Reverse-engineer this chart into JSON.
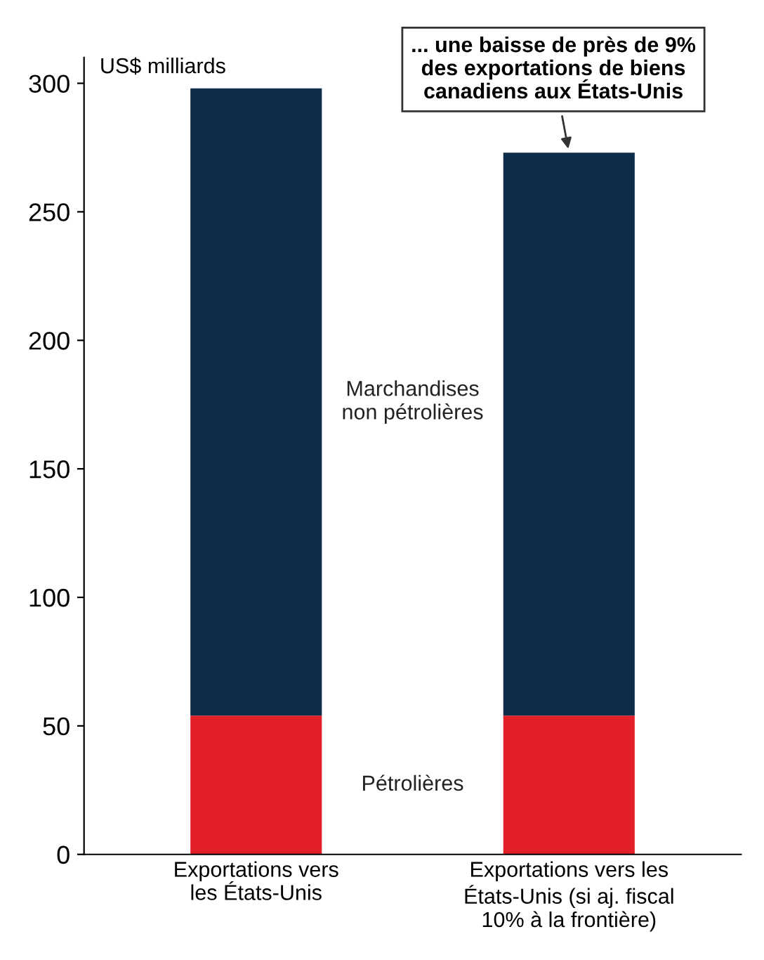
{
  "chart_data": {
    "type": "bar",
    "stacked": true,
    "ylabel": "US$ milliards",
    "categories": [
      "Exportations vers\nles États-Unis",
      "Exportations vers les\nÉtats-Unis (si aj. fiscal\n10% à la frontière)"
    ],
    "series": [
      {
        "name": "Pétrolières",
        "color": "#e3202a",
        "values": [
          54,
          54
        ]
      },
      {
        "name": "Marchandises\nnon pétrolières",
        "color": "#0f2d4a",
        "values": [
          244,
          219
        ]
      }
    ],
    "ylim": [
      0,
      310
    ],
    "yticks": [
      0,
      50,
      100,
      150,
      200,
      250,
      300
    ],
    "grid": false,
    "legend": false,
    "annotations": [
      {
        "text": "... une baisse de près de 9%\ndes exportations de biens\ncanadiens aux États-Unis",
        "x": "Exportations vers les\nÉtats-Unis (si aj. fiscal\n10% à la frontière)",
        "y": 273
      }
    ]
  }
}
